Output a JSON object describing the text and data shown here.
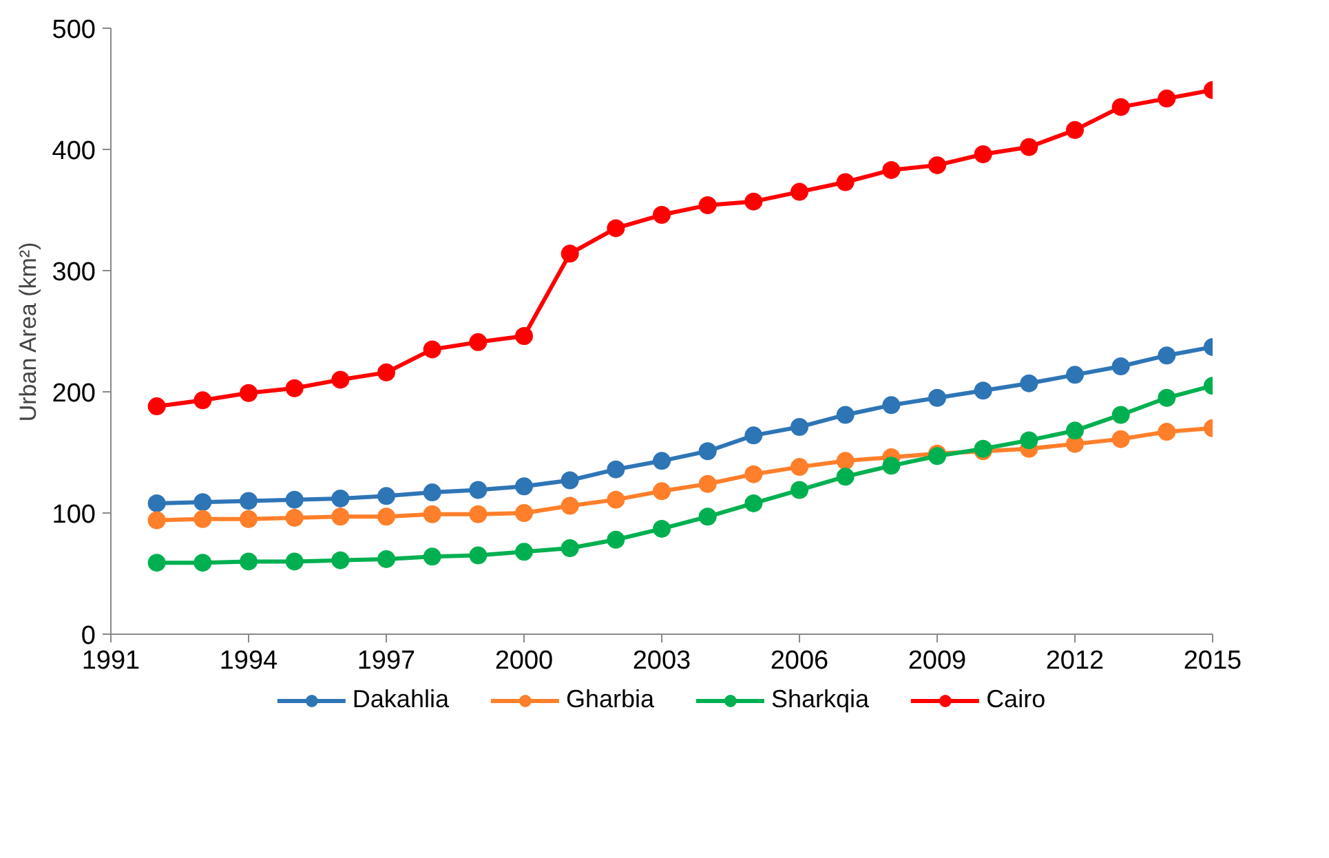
{
  "chart_data": {
    "type": "line",
    "ylabel": "Urban Area (km²)",
    "x": [
      1992,
      1993,
      1994,
      1995,
      1996,
      1997,
      1998,
      1999,
      2000,
      2001,
      2002,
      2003,
      2004,
      2005,
      2006,
      2007,
      2008,
      2009,
      2010,
      2011,
      2012,
      2013,
      2014,
      2015
    ],
    "series": [
      {
        "name": "Dakahlia",
        "color": "#2e75b6",
        "values": [
          108,
          109,
          110,
          111,
          112,
          114,
          117,
          119,
          122,
          127,
          136,
          143,
          151,
          164,
          171,
          181,
          189,
          195,
          201,
          207,
          214,
          221,
          230,
          237
        ]
      },
      {
        "name": "Gharbia",
        "color": "#ff7f2a",
        "values": [
          94,
          95,
          95,
          96,
          97,
          97,
          99,
          99,
          100,
          106,
          111,
          118,
          124,
          132,
          138,
          143,
          146,
          149,
          151,
          153,
          157,
          161,
          167,
          170
        ]
      },
      {
        "name": "Sharkqia",
        "color": "#00b050",
        "values": [
          59,
          59,
          60,
          60,
          61,
          62,
          64,
          65,
          68,
          71,
          78,
          87,
          97,
          108,
          119,
          130,
          139,
          147,
          153,
          160,
          168,
          181,
          195,
          205
        ]
      },
      {
        "name": "Cairo",
        "color": "#ff0000",
        "values": [
          188,
          193,
          199,
          203,
          210,
          216,
          235,
          241,
          246,
          314,
          335,
          346,
          354,
          357,
          365,
          373,
          383,
          387,
          396,
          402,
          416,
          435,
          442,
          449
        ]
      }
    ],
    "xlim": [
      1991,
      2015
    ],
    "xticks": [
      1991,
      1994,
      1997,
      2000,
      2003,
      2006,
      2009,
      2012,
      2015
    ],
    "ylim": [
      0,
      500
    ],
    "yticks": [
      0,
      100,
      200,
      300,
      400,
      500
    ],
    "grid": false,
    "legend": "bottom",
    "marker": "circle",
    "line_style": "solid"
  }
}
